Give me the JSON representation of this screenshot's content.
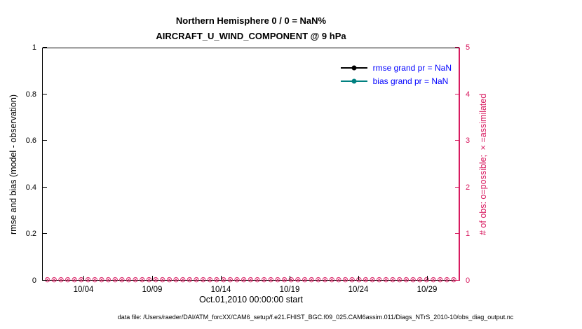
{
  "title": {
    "line1": "Northern Hemisphere 0 / 0 = NaN%",
    "line2": "AIRCRAFT_U_WIND_COMPONENT @ 9 hPa"
  },
  "axes": {
    "left": {
      "label": "rmse and bias (model - observation)",
      "ticks": [
        "0",
        "0.2",
        "0.4",
        "0.6",
        "0.8",
        "1"
      ],
      "range": [
        0,
        1
      ],
      "color": "#000000"
    },
    "right": {
      "label": "# of obs: o=possible; ×=assimilated",
      "ticks": [
        "0",
        "1",
        "2",
        "3",
        "4",
        "5"
      ],
      "range": [
        0,
        5
      ],
      "color": "#d81b60"
    },
    "x": {
      "label": "Oct.01,2010 00:00:00 start",
      "ticks": [
        "10/04",
        "10/09",
        "10/14",
        "10/19",
        "10/24",
        "10/29"
      ],
      "tick_days": [
        4,
        9,
        14,
        19,
        24,
        29
      ],
      "range_days": [
        1,
        31.4
      ]
    }
  },
  "legend": {
    "text_color": "#0000ff",
    "items": [
      {
        "label": "rmse grand pr = NaN",
        "color": "#000000"
      },
      {
        "label": "bias grand pr = NaN",
        "color": "#008080"
      }
    ]
  },
  "caption": "data file: /Users/raeder/DAI/ATM_forcXX/CAM6_setup/f.e21.FHIST_BGC.f09_025.CAM6assim.011/Diags_NTrS_2010-10/obs_diag_output.nc",
  "chart_data": {
    "type": "line",
    "title": "Northern Hemisphere 0 / 0 = NaN% | AIRCRAFT_U_WIND_COMPONENT @ 9 hPa",
    "xlabel": "Oct.01,2010 00:00:00 start",
    "ylabel_left": "rmse and bias (model - observation)",
    "ylabel_right": "# of obs: o=possible; ×=assimilated",
    "x_ticks": [
      "10/04",
      "10/09",
      "10/14",
      "10/19",
      "10/24",
      "10/29"
    ],
    "x_tick_days": [
      4,
      9,
      14,
      19,
      24,
      29
    ],
    "x_range_days": [
      1,
      31.4
    ],
    "ylim_left": [
      0,
      1
    ],
    "ylim_right": [
      0,
      5
    ],
    "grid": false,
    "legend_position": "top-right-inside",
    "series": [
      {
        "name": "rmse grand pr = NaN",
        "color": "#000000",
        "values": [],
        "value": "NaN"
      },
      {
        "name": "bias grand pr = NaN",
        "color": "#008080",
        "values": [],
        "value": "NaN"
      }
    ],
    "obs_counts": {
      "possible": 0,
      "assimilated": 0,
      "y_value": 0,
      "marker_symbol": "⊗",
      "color": "#d81b60",
      "count_of_markers": 61
    }
  }
}
